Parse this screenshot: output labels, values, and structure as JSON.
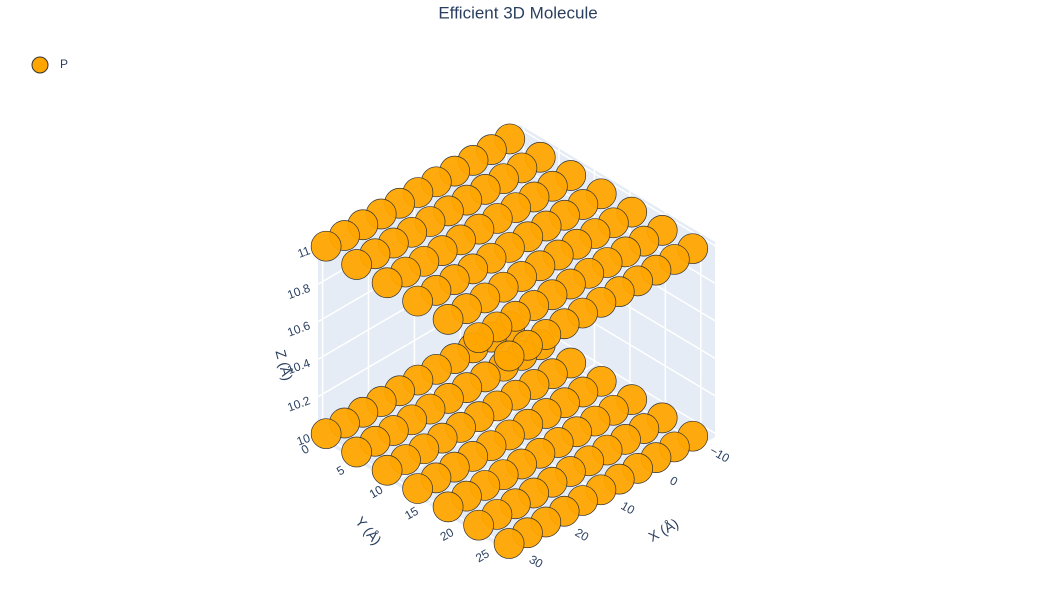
{
  "chart_data": {
    "type": "scatter3d",
    "title": "Efficient 3D Molecule",
    "xlabel": "X (Å)",
    "ylabel": "Y (Å)",
    "zlabel": "Z (Å)",
    "xlim": [
      -13,
      31
    ],
    "ylim": [
      -0.5,
      27
    ],
    "zlim": [
      9.98,
      11.02
    ],
    "xticks": [
      {
        "value": -10,
        "label": "−10"
      },
      0,
      10,
      20,
      30
    ],
    "yticks": [
      0,
      5,
      10,
      15,
      20,
      25
    ],
    "zticks": [
      10,
      10.2,
      10.4,
      10.6,
      10.8,
      11
    ],
    "grid": true,
    "legend": "top-left",
    "series": [
      {
        "name": "P",
        "color": "#FFA500",
        "x": [
          -10,
          -6,
          -2,
          2,
          6,
          10,
          14,
          18,
          22,
          26,
          30,
          -10,
          -6,
          -2,
          2,
          6,
          10,
          14,
          18,
          22,
          26,
          30,
          -10,
          -6,
          -2,
          2,
          6,
          10,
          14,
          18,
          22,
          26,
          30,
          -10,
          -6,
          -2,
          2,
          6,
          10,
          14,
          18,
          22,
          26,
          30,
          -10,
          -6,
          -2,
          2,
          6,
          10,
          14,
          18,
          22,
          26,
          30,
          -10,
          -6,
          -2,
          2,
          6,
          10,
          14,
          18,
          22,
          26,
          30,
          -10,
          -6,
          -2,
          2,
          6,
          10,
          14,
          18,
          22,
          26,
          30,
          -10,
          -6,
          -2,
          2,
          6,
          10,
          14,
          18,
          22,
          26,
          30,
          -10,
          -6,
          -2,
          2,
          6,
          10,
          14,
          18,
          22,
          26,
          30,
          -10,
          -6,
          -2,
          2,
          6,
          10,
          14,
          18,
          22,
          26,
          30,
          -10,
          -6,
          -2,
          2,
          6,
          10,
          14,
          18,
          22,
          26,
          30,
          -10,
          -6,
          -2,
          2,
          6,
          10,
          14,
          18,
          22,
          26,
          30,
          -10,
          -6,
          -2,
          2,
          6,
          10,
          14,
          18,
          22,
          26,
          30,
          -10,
          -6,
          -2,
          2,
          6,
          10,
          14,
          18,
          22,
          26,
          30
        ],
        "y": [
          0,
          0,
          0,
          0,
          0,
          0,
          0,
          0,
          0,
          0,
          0,
          4.3,
          4.3,
          4.3,
          4.3,
          4.3,
          4.3,
          4.3,
          4.3,
          4.3,
          4.3,
          4.3,
          8.6,
          8.6,
          8.6,
          8.6,
          8.6,
          8.6,
          8.6,
          8.6,
          8.6,
          8.6,
          8.6,
          12.9,
          12.9,
          12.9,
          12.9,
          12.9,
          12.9,
          12.9,
          12.9,
          12.9,
          12.9,
          12.9,
          17.2,
          17.2,
          17.2,
          17.2,
          17.2,
          17.2,
          17.2,
          17.2,
          17.2,
          17.2,
          17.2,
          21.5,
          21.5,
          21.5,
          21.5,
          21.5,
          21.5,
          21.5,
          21.5,
          21.5,
          21.5,
          21.5,
          25.8,
          25.8,
          25.8,
          25.8,
          25.8,
          25.8,
          25.8,
          25.8,
          25.8,
          25.8,
          25.8,
          0,
          0,
          0,
          0,
          0,
          0,
          0,
          0,
          0,
          0,
          0,
          4.3,
          4.3,
          4.3,
          4.3,
          4.3,
          4.3,
          4.3,
          4.3,
          4.3,
          4.3,
          4.3,
          8.6,
          8.6,
          8.6,
          8.6,
          8.6,
          8.6,
          8.6,
          8.6,
          8.6,
          8.6,
          8.6,
          12.9,
          12.9,
          12.9,
          12.9,
          12.9,
          12.9,
          12.9,
          12.9,
          12.9,
          12.9,
          12.9,
          17.2,
          17.2,
          17.2,
          17.2,
          17.2,
          17.2,
          17.2,
          17.2,
          17.2,
          17.2,
          17.2,
          21.5,
          21.5,
          21.5,
          21.5,
          21.5,
          21.5,
          21.5,
          21.5,
          21.5,
          21.5,
          21.5,
          25.8,
          25.8,
          25.8,
          25.8,
          25.8,
          25.8,
          25.8,
          25.8,
          25.8,
          25.8,
          25.8
        ],
        "z": [
          10,
          10,
          10,
          10,
          10,
          10,
          10,
          10,
          10,
          10,
          10,
          10,
          10,
          10,
          10,
          10,
          10,
          10,
          10,
          10,
          10,
          10,
          10,
          10,
          10,
          10,
          10,
          10,
          10,
          10,
          10,
          10,
          10,
          10,
          10,
          10,
          10,
          10,
          10,
          10,
          10,
          10,
          10,
          10,
          10,
          10,
          10,
          10,
          10,
          10,
          10,
          10,
          10,
          10,
          10,
          10,
          10,
          10,
          10,
          10,
          10,
          10,
          10,
          10,
          10,
          10,
          10,
          10,
          10,
          10,
          10,
          10,
          10,
          10,
          10,
          10,
          10,
          11,
          11,
          11,
          11,
          11,
          11,
          11,
          11,
          11,
          11,
          11,
          11,
          11,
          11,
          11,
          11,
          11,
          11,
          11,
          11,
          11,
          11,
          11,
          11,
          11,
          11,
          11,
          11,
          11,
          11,
          11,
          11,
          11,
          11,
          11,
          11,
          11,
          11,
          11,
          11,
          11,
          11,
          11,
          11,
          11,
          11,
          11,
          11,
          11,
          11,
          11,
          11,
          11,
          11,
          11,
          11,
          11,
          11,
          11,
          11,
          11,
          11,
          11,
          11,
          11,
          11,
          11,
          11,
          11,
          11,
          11,
          11,
          11,
          11,
          11,
          11,
          11
        ]
      }
    ]
  }
}
